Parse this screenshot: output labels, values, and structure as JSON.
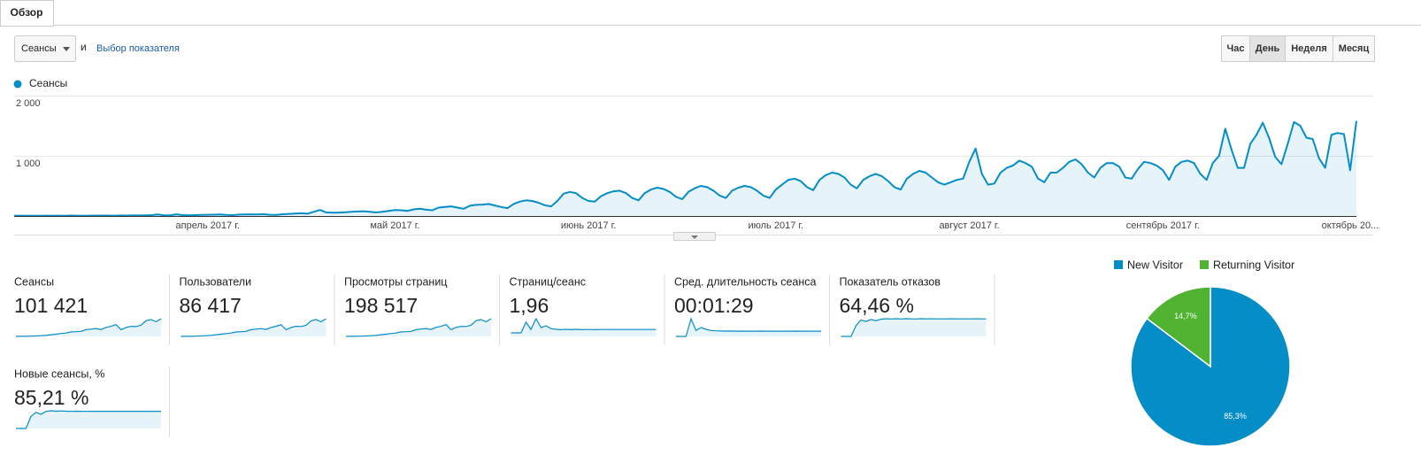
{
  "tabs": [
    "Обзор"
  ],
  "controls": {
    "metric": "Сеансы",
    "conjunction": "и",
    "metric_picker": "Выбор показателя",
    "periods": [
      "Час",
      "День",
      "Неделя",
      "Месяц"
    ],
    "active_period": "День"
  },
  "chart_data": [
    {
      "type": "line",
      "categories": [
        null,
        null,
        null,
        null,
        null,
        null,
        null,
        null,
        null,
        null,
        null,
        null,
        null,
        null,
        null,
        null,
        null,
        null,
        null,
        null,
        null,
        null,
        null,
        null,
        null,
        null,
        null,
        null,
        null,
        null,
        null,
        "апрель 2017 г.",
        null,
        null,
        null,
        null,
        null,
        null,
        null,
        null,
        null,
        null,
        null,
        null,
        null,
        null,
        null,
        null,
        null,
        null,
        null,
        null,
        null,
        null,
        null,
        null,
        null,
        null,
        null,
        null,
        null,
        "май 2017 г.",
        null,
        null,
        null,
        null,
        null,
        null,
        null,
        null,
        null,
        null,
        null,
        null,
        null,
        null,
        null,
        null,
        null,
        null,
        null,
        null,
        null,
        null,
        null,
        null,
        null,
        null,
        null,
        null,
        null,
        null,
        "июнь 2017 г.",
        null,
        null,
        null,
        null,
        null,
        null,
        null,
        null,
        null,
        null,
        null,
        null,
        null,
        null,
        null,
        null,
        null,
        null,
        null,
        null,
        null,
        null,
        null,
        null,
        null,
        null,
        null,
        null,
        null,
        "июль 2017 г.",
        null,
        null,
        null,
        null,
        null,
        null,
        null,
        null,
        null,
        null,
        null,
        null,
        null,
        null,
        null,
        null,
        null,
        null,
        null,
        null,
        null,
        null,
        null,
        null,
        null,
        null,
        null,
        null,
        null,
        null,
        "август 2017 г.",
        null,
        null,
        null,
        null,
        null,
        null,
        null,
        null,
        null,
        null,
        null,
        null,
        null,
        null,
        null,
        null,
        null,
        null,
        null,
        null,
        null,
        null,
        null,
        null,
        null,
        null,
        null,
        null,
        null,
        null,
        "сентябрь 2017 г.",
        null,
        null,
        null,
        null,
        null,
        null,
        null,
        null,
        null,
        null,
        null,
        null,
        null,
        null,
        null,
        null,
        null,
        null,
        null,
        null,
        null,
        null,
        null,
        null,
        null,
        null,
        null,
        null,
        null,
        "октябрь 20...",
        null
      ],
      "series": [
        {
          "name": "Сеансы",
          "color": "#058dc7",
          "values": [
            5,
            6,
            5,
            4,
            5,
            6,
            5,
            6,
            5,
            7,
            6,
            5,
            6,
            7,
            8,
            7,
            6,
            9,
            8,
            10,
            9,
            12,
            15,
            25,
            10,
            12,
            28,
            14,
            10,
            15,
            18,
            20,
            22,
            25,
            18,
            15,
            24,
            26,
            28,
            25,
            30,
            20,
            18,
            30,
            35,
            40,
            45,
            38,
            70,
            100,
            60,
            55,
            58,
            62,
            70,
            75,
            80,
            70,
            60,
            70,
            85,
            100,
            95,
            85,
            110,
            120,
            105,
            95,
            140,
            150,
            160,
            140,
            120,
            170,
            185,
            190,
            200,
            175,
            150,
            130,
            200,
            240,
            260,
            250,
            220,
            180,
            160,
            250,
            370,
            400,
            380,
            300,
            250,
            240,
            330,
            380,
            410,
            420,
            380,
            300,
            260,
            380,
            440,
            470,
            450,
            400,
            320,
            280,
            400,
            460,
            500,
            480,
            420,
            340,
            300,
            420,
            470,
            500,
            480,
            420,
            340,
            300,
            440,
            520,
            600,
            620,
            580,
            480,
            430,
            600,
            680,
            720,
            700,
            640,
            520,
            460,
            600,
            660,
            700,
            660,
            580,
            480,
            440,
            620,
            700,
            750,
            720,
            640,
            560,
            520,
            560,
            600,
            620,
            900,
            1120,
            700,
            520,
            540,
            720,
            800,
            840,
            920,
            880,
            820,
            620,
            560,
            720,
            720,
            800,
            900,
            940,
            860,
            720,
            640,
            800,
            880,
            880,
            820,
            640,
            620,
            780,
            900,
            880,
            840,
            760,
            600,
            820,
            900,
            920,
            880,
            700,
            600,
            880,
            1000,
            1450,
            1100,
            800,
            800,
            1200,
            1350,
            1550,
            1300,
            980,
            860,
            1200,
            1560,
            1500,
            1300,
            1280,
            960,
            800,
            1350,
            1380,
            1360,
            760,
            1580
          ]
        }
      ],
      "ylim": [
        0,
        2000
      ],
      "yticks": [
        {
          "value": 1000,
          "label": "1 000"
        },
        {
          "value": 2000,
          "label": "2 000"
        }
      ],
      "grid": true,
      "area": true
    },
    {
      "type": "pie",
      "categories": [
        "New Visitor",
        "Returning Visitor"
      ],
      "values": [
        85.3,
        14.7
      ],
      "value_labels": [
        "85,3%",
        "14,7%"
      ],
      "colors": [
        "#058dc7",
        "#50b432"
      ]
    }
  ],
  "metrics": [
    {
      "label": "Сеансы",
      "value": "101 421",
      "spark": [
        5,
        8,
        10,
        20,
        40,
        60,
        90,
        150,
        200,
        260,
        300,
        400,
        420,
        450,
        600,
        650,
        700,
        620,
        800,
        900,
        1050,
        600,
        800,
        900,
        880,
        1000,
        1400,
        1500,
        1300,
        1580
      ]
    },
    {
      "label": "Пользователи",
      "value": "86 417",
      "spark": [
        5,
        7,
        9,
        18,
        35,
        52,
        80,
        130,
        170,
        220,
        260,
        340,
        360,
        390,
        520,
        560,
        600,
        540,
        690,
        780,
        900,
        520,
        690,
        780,
        760,
        860,
        1200,
        1300,
        1120,
        1360
      ]
    },
    {
      "label": "Просмотры страниц",
      "value": "198 517",
      "spark": [
        10,
        15,
        20,
        40,
        80,
        120,
        180,
        300,
        400,
        520,
        600,
        800,
        840,
        900,
        1200,
        1300,
        1400,
        1240,
        1600,
        1800,
        2100,
        1200,
        1600,
        1800,
        1760,
        2000,
        2800,
        3000,
        2600,
        3150
      ]
    },
    {
      "label": "Страниц/сеанс",
      "value": "1,96",
      "spark": [
        1,
        1,
        1,
        4,
        2,
        5,
        2.5,
        3,
        2.2,
        2,
        1.9,
        2,
        1.9,
        2,
        1.9,
        1.95,
        1.95,
        1.9,
        1.95,
        1.95,
        1.96,
        1.95,
        1.95,
        1.96,
        1.96,
        1.95,
        1.96,
        1.96,
        1.96,
        1.96
      ]
    },
    {
      "label": "Сред. длительность сеанса",
      "value": "00:01:29",
      "spark": [
        0,
        0,
        0,
        300,
        100,
        150,
        120,
        100,
        95,
        92,
        90,
        91,
        89,
        90,
        89,
        88,
        89,
        90,
        89,
        89,
        88,
        89,
        89,
        89,
        90,
        89,
        89,
        88,
        89,
        89
      ]
    },
    {
      "label": "Показатель отказов",
      "value": "64,46 %",
      "spark": [
        0,
        0,
        0,
        40,
        60,
        55,
        62,
        58,
        63,
        65,
        64,
        65,
        64,
        65,
        64.5,
        64,
        65,
        64.5,
        64.6,
        64.4,
        64.5,
        64.5,
        64.6,
        64.4,
        64.5,
        64.5,
        64.5,
        64.6,
        64.5,
        64.5
      ]
    },
    {
      "label": "Новые сеансы, %",
      "value": "85,21 %",
      "spark": [
        0,
        0,
        0,
        60,
        80,
        70,
        85,
        88,
        86,
        87,
        86,
        85,
        86,
        85.5,
        85,
        85.5,
        85.3,
        85.2,
        85.4,
        85.2,
        85.3,
        85.2,
        85.2,
        85.3,
        85.2,
        85.2,
        85.2,
        85.3,
        85.2,
        85.2
      ]
    }
  ]
}
